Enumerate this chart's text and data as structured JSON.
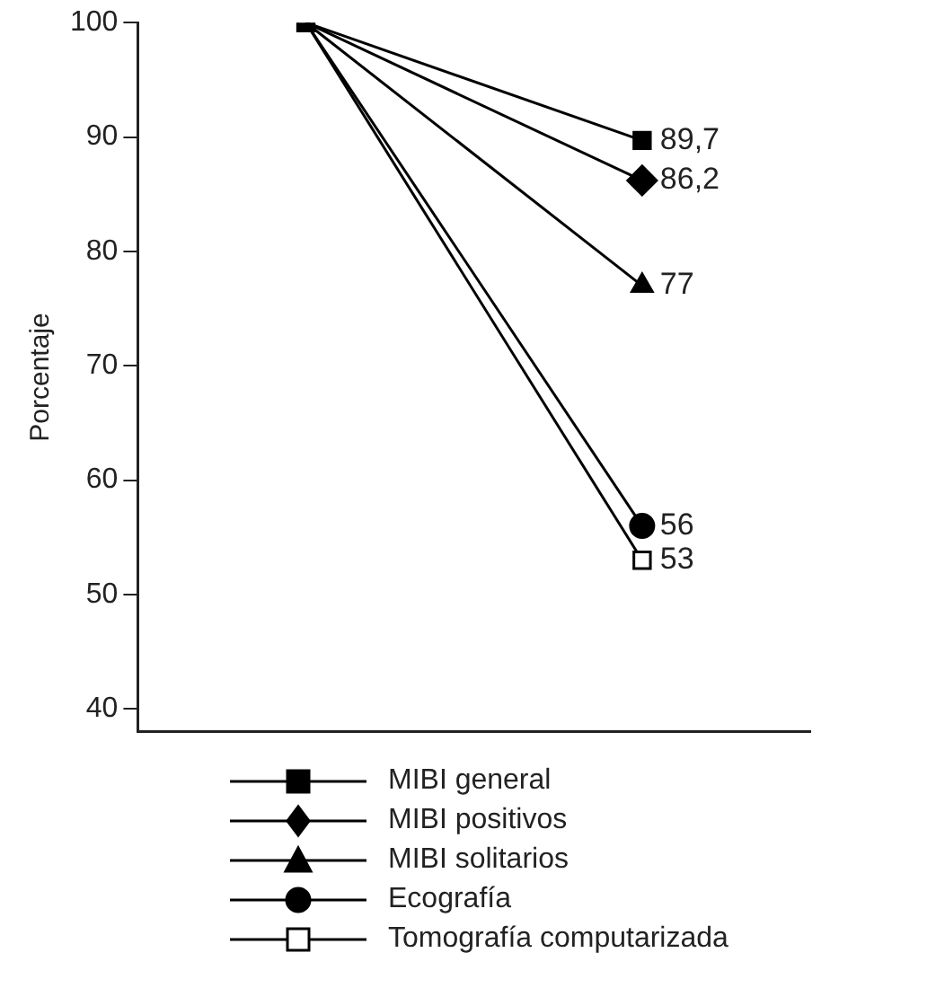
{
  "chart_data": {
    "type": "line",
    "ylabel": "Porcentaje",
    "categories": [
      null,
      null
    ],
    "ylim": [
      38,
      100
    ],
    "yticks": [
      40,
      50,
      60,
      70,
      80,
      90,
      100
    ],
    "tick_labels": "y",
    "grid": false,
    "legend": "bottom",
    "series": [
      {
        "name": "MIBI general",
        "color": "#000000",
        "marker": "square",
        "values": [
          100,
          89.7
        ],
        "value_labels": [
          null,
          "89,7"
        ]
      },
      {
        "name": "MIBI positivos",
        "color": "#000000",
        "marker": "diamond",
        "values": [
          100,
          86.2
        ],
        "value_labels": [
          null,
          "86,2"
        ]
      },
      {
        "name": "MIBI solitarios",
        "color": "#000000",
        "marker": "triangle",
        "values": [
          100,
          77
        ],
        "value_labels": [
          null,
          "77"
        ]
      },
      {
        "name": "Ecografía",
        "color": "#000000",
        "marker": "circle",
        "values": [
          100,
          56
        ],
        "value_labels": [
          null,
          "56"
        ]
      },
      {
        "name": "Tomografía computarizada",
        "color": "#000000",
        "colors": [
          "#000000",
          "#ffffff"
        ],
        "marker": "square",
        "values": [
          100,
          53
        ],
        "value_labels": [
          null,
          "53"
        ]
      }
    ]
  }
}
